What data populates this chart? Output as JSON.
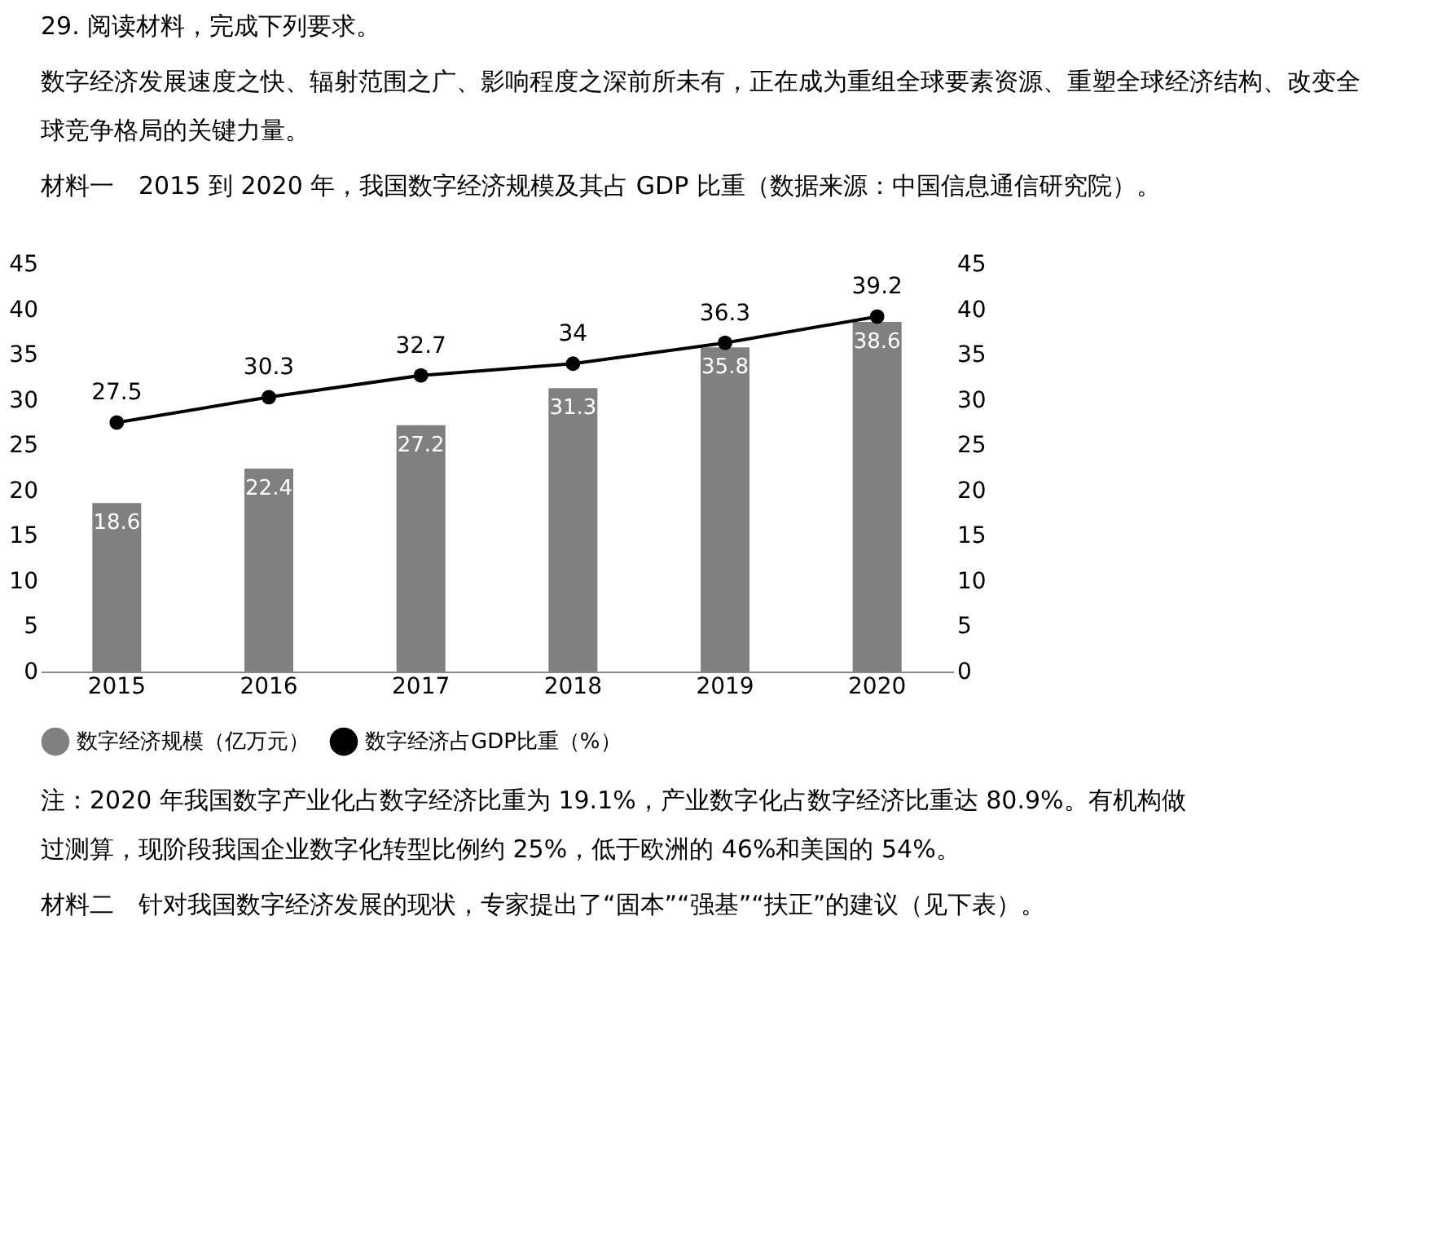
{
  "chart_data": {
    "type": "bar",
    "title": "29. 阅读材料，完成下列要求。",
    "subtitle": "数字经济发展速度之快、辐射范围之广、影响程度之深前所未有，正在成为重组全球要素资源、重塑全球经济结构、改变全球竞争格局的关键力量。",
    "categories": [
      "2015",
      "2016",
      "2017",
      "2018",
      "2019",
      "2020"
    ],
    "series": [
      {
        "name": "数字经济规模（亿万元）",
        "color": "#808080",
        "values": [
          18.6,
          22.4,
          27.2,
          31.3,
          35.8,
          38.6
        ]
      },
      {
        "name": "数字经济占GDP比重（%）",
        "type": "line",
        "axis": "y2",
        "color": "#000000",
        "values": [
          27.5,
          30.3,
          32.7,
          34,
          36.3,
          39.2
        ]
      }
    ],
    "ylim": [
      0,
      45
    ],
    "yticks": [
      0,
      5,
      10,
      15,
      20,
      25,
      30,
      35,
      40,
      45
    ],
    "y2lim": [
      0,
      45
    ],
    "y2ticks": [
      0,
      5,
      10,
      15,
      20,
      25,
      30,
      35,
      40,
      45
    ],
    "data_labels": true,
    "legend": "bottom",
    "marker": "circle",
    "grid": false,
    "annotations": [
      "材料一　2015 到 2020 年，我国数字经济规模及其占 GDP 比重（数据来源：中国信息通信研究院）。",
      "注：2020 年我国数字产业化占数字经济比重为 19.1%，产业数字化占数字经济比重达 80.9%。有机构做过测算，现阶段我国企业数字化转型比例约 25%，低于欧洲的 46%和美国的 54%。",
      "材料二　针对我国数字经济发展的现状，专家提出了“固本”“强基”“扶正”的建议（见下表）。"
    ]
  }
}
